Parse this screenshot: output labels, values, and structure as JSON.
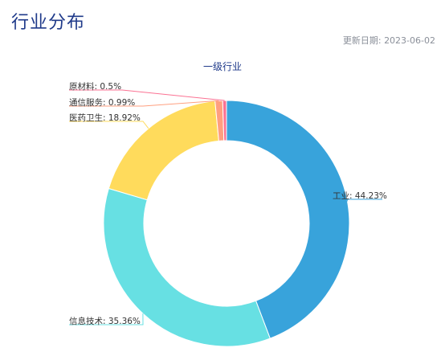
{
  "page": {
    "title": "行业分布",
    "update_label": "更新日期:",
    "update_date": "2023-06-02"
  },
  "chart_data": {
    "type": "pie",
    "style": "donut",
    "title": "一级行业",
    "slices": [
      {
        "name": "工业",
        "value": 44.23,
        "label": "工业: 44.23%",
        "color": "#38a3db"
      },
      {
        "name": "信息技术",
        "value": 35.36,
        "label": "信息技术: 35.36%",
        "color": "#67e0e3"
      },
      {
        "name": "医药卫生",
        "value": 18.92,
        "label": "医药卫生: 18.92%",
        "color": "#ffdb5c"
      },
      {
        "name": "通信服务",
        "value": 0.99,
        "label": "通信服务: 0.99%",
        "color": "#ff9f7f"
      },
      {
        "name": "原材料",
        "value": 0.5,
        "label": "原材料: 0.5%",
        "color": "#fb7293"
      }
    ]
  }
}
